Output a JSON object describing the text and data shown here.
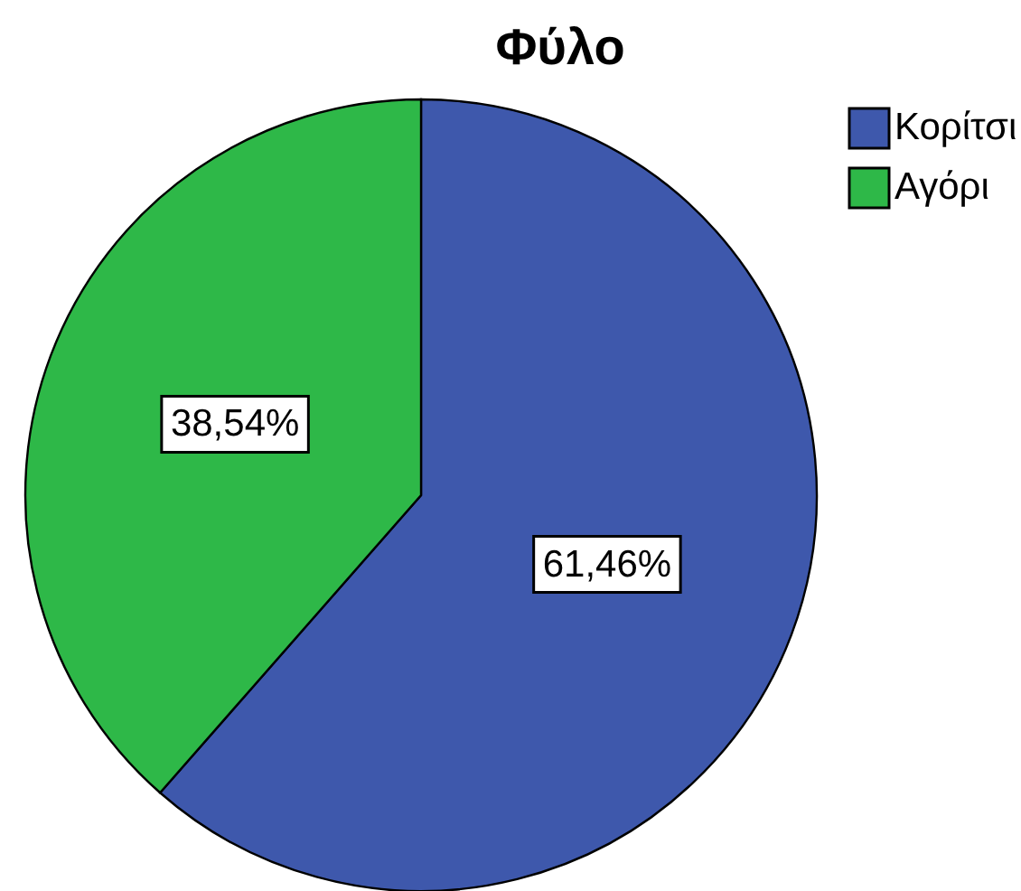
{
  "chart_data": {
    "type": "pie",
    "title": "Φύλο",
    "categories": [
      "Κορίτσι",
      "Αγόρι"
    ],
    "values": [
      61.46,
      38.54
    ],
    "colors": [
      "#3e58ac",
      "#2eb848"
    ],
    "value_labels": [
      "61,46%",
      "38,54%"
    ],
    "legend": "top right"
  }
}
